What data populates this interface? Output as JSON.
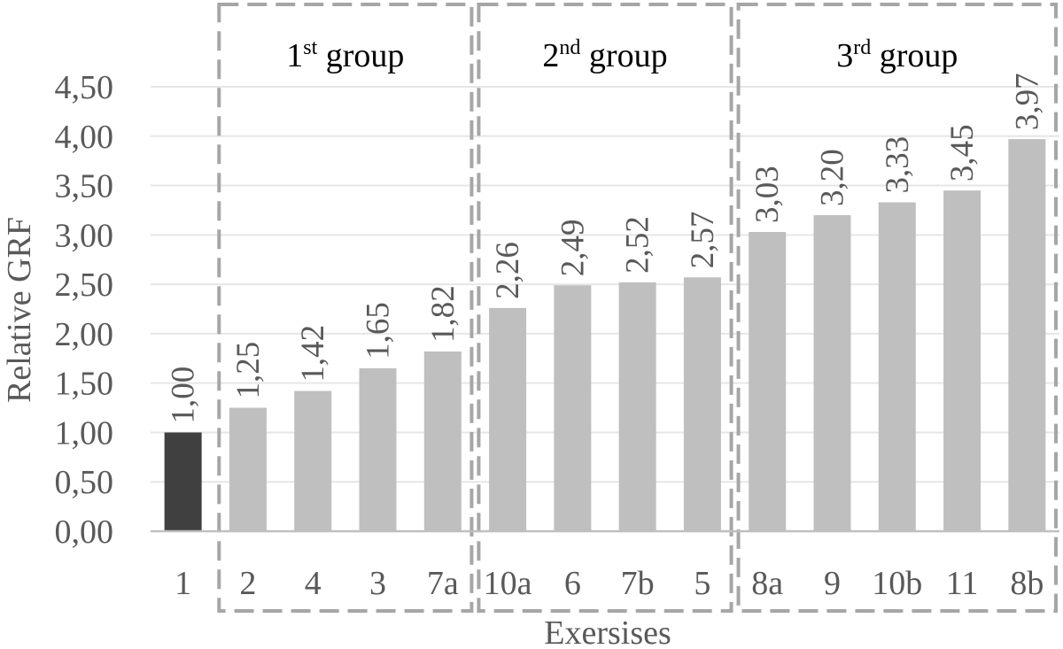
{
  "chart_data": {
    "type": "bar",
    "title": "",
    "xlabel": "Exersises",
    "ylabel": "Relative GRF",
    "ylim": [
      0,
      4.5
    ],
    "yticks": [
      "0,00",
      "0,50",
      "1,00",
      "1,50",
      "2,00",
      "2,50",
      "3,00",
      "3,50",
      "4,00",
      "4,50"
    ],
    "grid": true,
    "categories": [
      "1",
      "2",
      "4",
      "3",
      "7a",
      "10a",
      "6",
      "7b",
      "5",
      "8a",
      "9",
      "10b",
      "11",
      "8b"
    ],
    "values": [
      1.0,
      1.25,
      1.42,
      1.65,
      1.82,
      2.26,
      2.49,
      2.52,
      2.57,
      3.03,
      3.2,
      3.33,
      3.45,
      3.97
    ],
    "value_labels": [
      "1,00",
      "1,25",
      "1,42",
      "1,65",
      "1,82",
      "2,26",
      "2,49",
      "2,52",
      "2,57",
      "3,03",
      "3,20",
      "3,33",
      "3,45",
      "3,97"
    ],
    "groups": [
      {
        "num": "1",
        "sup": "st",
        "word": " group",
        "categories": [
          "2",
          "4",
          "3",
          "7a"
        ]
      },
      {
        "num": "2",
        "sup": "nd",
        "word": " group",
        "categories": [
          "10a",
          "6",
          "7b",
          "5"
        ]
      },
      {
        "num": "3",
        "sup": "rd",
        "word": " group",
        "categories": [
          "8a",
          "9",
          "10b",
          "11",
          "8b"
        ]
      }
    ],
    "colors": {
      "reference_bar": "#404040",
      "bar": "#bfbfbf",
      "text": "#595959",
      "grid": "#e6e6e6",
      "axis": "#bfbfbf",
      "group_box": "#a6a6a6"
    }
  }
}
